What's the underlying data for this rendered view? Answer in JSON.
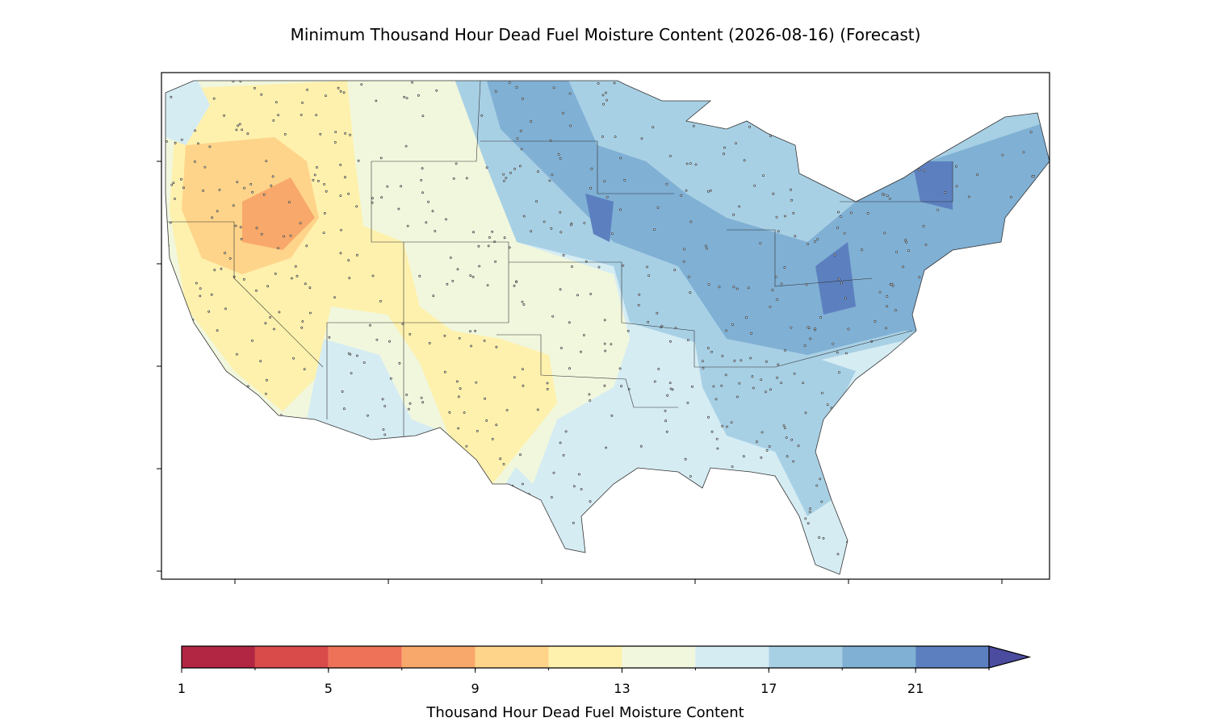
{
  "title": "Minimum Thousand Hour Dead Fuel Moisture Content (2026-08-16) (Forecast)",
  "colorbar": {
    "label": "Thousand Hour Dead Fuel Moisture Content",
    "boundaries": [
      1,
      3,
      5,
      7,
      9,
      11,
      13,
      15,
      17,
      19,
      21,
      23
    ],
    "colors": [
      "#b22543",
      "#d94a4a",
      "#ee7258",
      "#f8a86a",
      "#fed48a",
      "#fef1ad",
      "#f1f7dd",
      "#d5ecf3",
      "#a8d0e5",
      "#80b0d4",
      "#5c80bf"
    ],
    "extend_color": "#4b4ba0",
    "ticks": [
      1,
      5,
      9,
      13,
      17,
      21
    ]
  }
}
